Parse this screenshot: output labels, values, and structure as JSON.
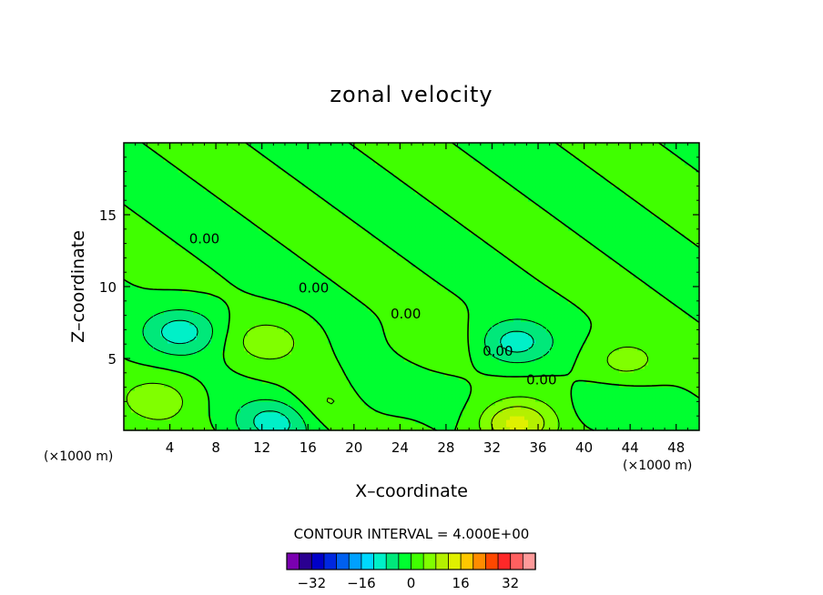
{
  "chart_data": {
    "type": "heatmap",
    "title": "zonal velocity",
    "xlabel": "X–coordinate",
    "ylabel": "Z–coordinate",
    "x_unit": "(×1000 m)",
    "y_unit": "(×1000 m)",
    "xlim": [
      0,
      50
    ],
    "ylim": [
      0,
      20
    ],
    "x_ticks": [
      4,
      8,
      12,
      16,
      20,
      24,
      28,
      32,
      36,
      40,
      44,
      48
    ],
    "y_ticks": [
      5,
      10,
      15
    ],
    "contour_interval_text": "CONTOUR INTERVAL = 4.000E+00",
    "contour_labels": [
      "0.00",
      "0.00",
      "0.00",
      "0.00",
      "0.00"
    ],
    "colorbar": {
      "tick_values": [
        -32,
        -16,
        0,
        16,
        32
      ],
      "tick_labels": [
        "−32",
        "−16",
        "0",
        "16",
        "32"
      ],
      "levels": [
        -36,
        -32,
        -28,
        -24,
        -20,
        -16,
        -12,
        -8,
        -4,
        0,
        4,
        8,
        12,
        16,
        20,
        24,
        28,
        32,
        36
      ],
      "colors": [
        "#7a00b0",
        "#2a0090",
        "#0000c8",
        "#0028e0",
        "#0060f0",
        "#00a0ff",
        "#00d8ff",
        "#00f0c8",
        "#00e87a",
        "#00ff30",
        "#40ff00",
        "#80ff00",
        "#b4f000",
        "#e0f000",
        "#ffc800",
        "#ff8c00",
        "#ff4800",
        "#ff2828",
        "#ff6060",
        "#ff9a9a"
      ]
    },
    "features": [
      {
        "x": 5,
        "z": 6.9,
        "value": -10
      },
      {
        "x": 12.5,
        "z": 6.2,
        "value": 6
      },
      {
        "x": 13,
        "z": 0.6,
        "value": -9
      },
      {
        "x": 34,
        "z": 6.1,
        "value": -10
      },
      {
        "x": 34,
        "z": 0.4,
        "value": 14
      },
      {
        "x": 43.5,
        "z": 4.8,
        "value": 6
      },
      {
        "x": 18,
        "z": 2,
        "value": 4
      },
      {
        "x": 3,
        "z": 2.2,
        "value": 6
      },
      {
        "x": 22,
        "z": 2.8,
        "value": -4
      },
      {
        "x": 27,
        "z": 6,
        "value": 3
      },
      {
        "x": 42,
        "z": 1.4,
        "value": -4
      }
    ]
  }
}
